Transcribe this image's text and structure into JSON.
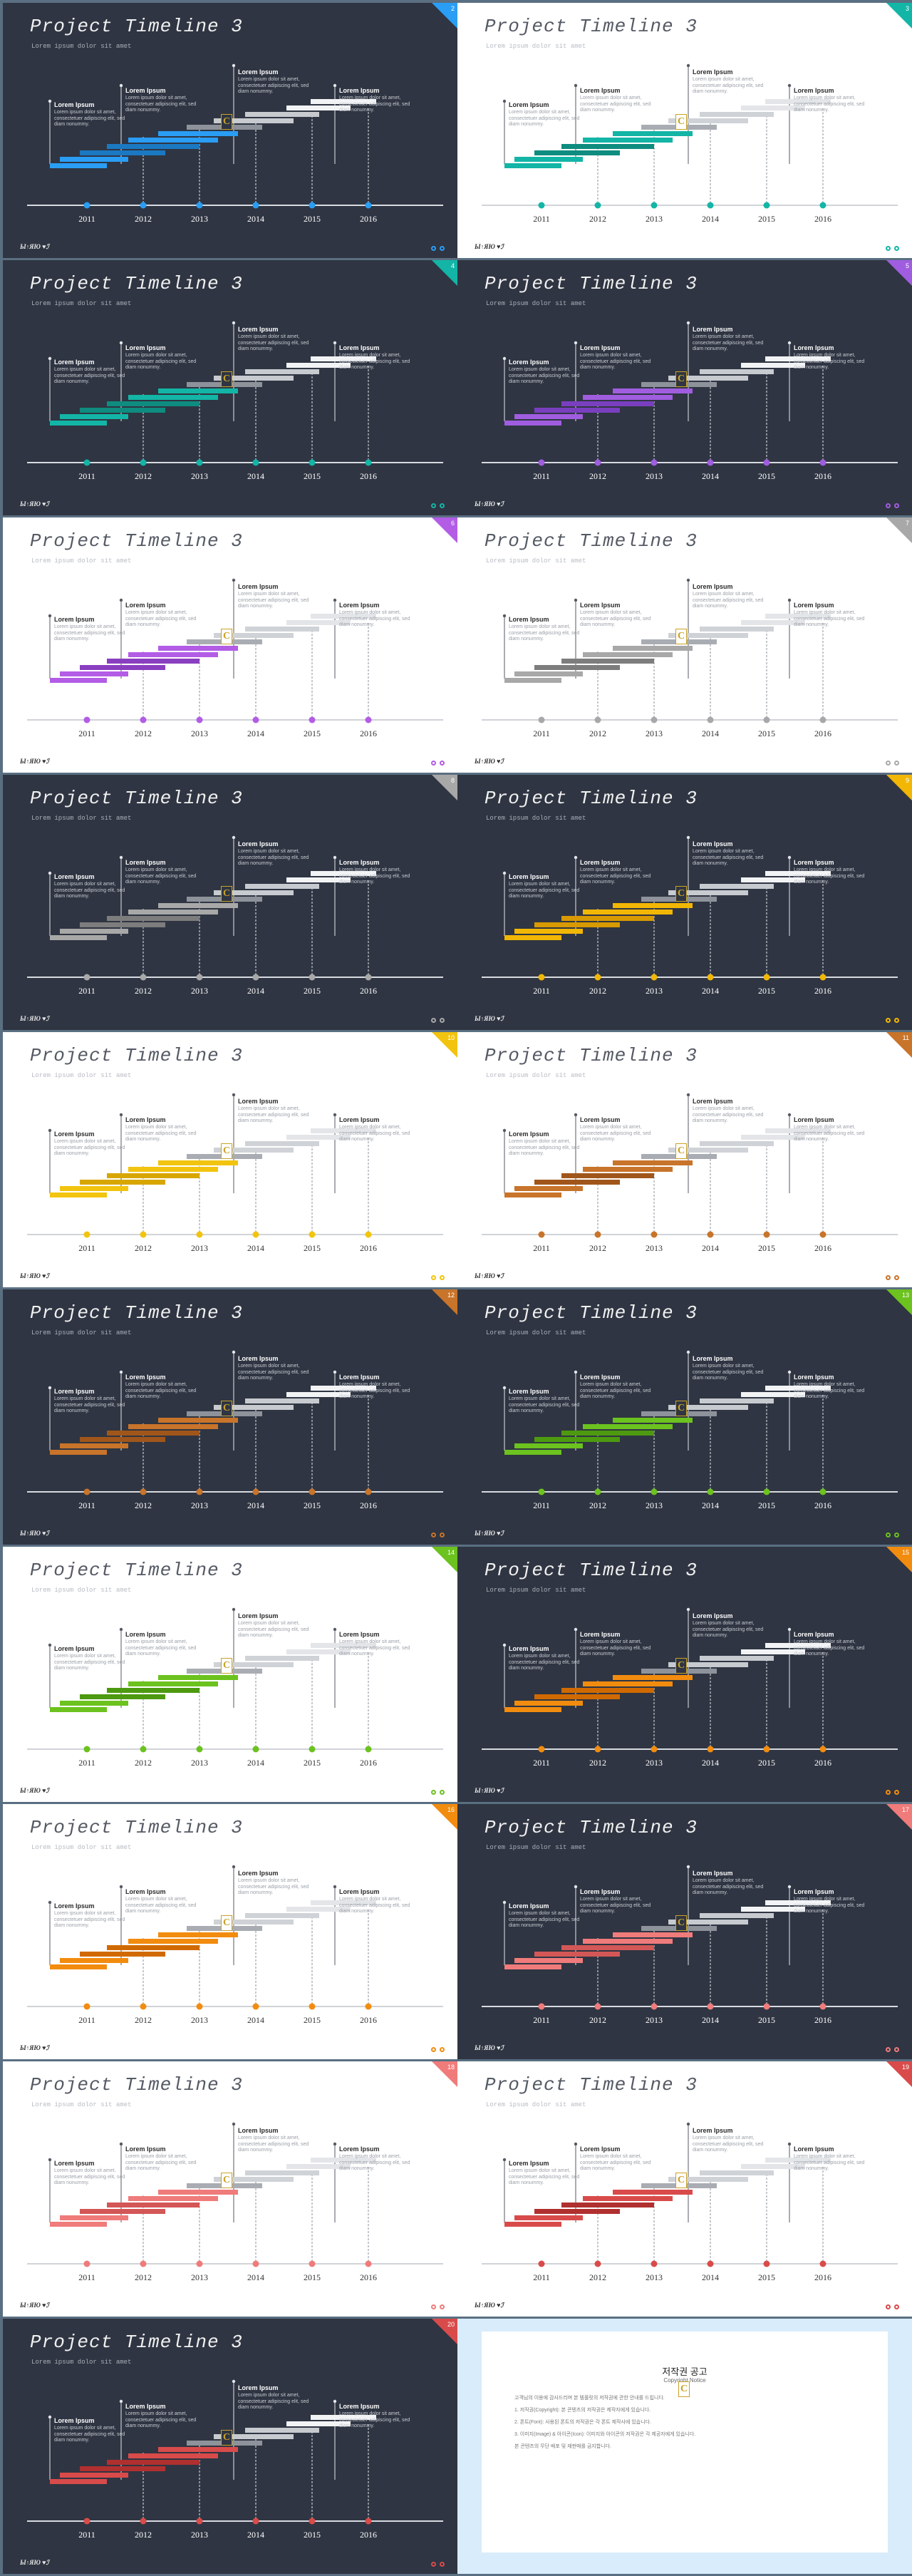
{
  "deck": {
    "title": "Project Timeline 3",
    "subtitle": "Lorem ipsum dolor sit amet",
    "footer_logo": "Ы↑ЯЮ ♥ℐ",
    "years": [
      "2011",
      "2012",
      "2013",
      "2014",
      "2015",
      "2016"
    ],
    "badge_letter": "C",
    "callouts": [
      {
        "heading": "Lorem Ipsum",
        "text": "Lorem ipsum dolor sit amet, consectetuer adipiscing elit, sed diam nonummy."
      },
      {
        "heading": "Lorem Ipsum",
        "text": "Lorem ipsum dolor sit amet, consectetuer adipiscing elit, sed diam nonummy."
      },
      {
        "heading": "Lorem Ipsum",
        "text": "Lorem ipsum dolor sit amet, consectetuer adipiscing elit, sed diam nonummy."
      },
      {
        "heading": "Lorem Ipsum",
        "text": "Lorem ipsum dolor sit amet, consectetuer adipiscing elit, sed diam nonummy."
      }
    ]
  },
  "slides": [
    {
      "num": "2",
      "theme": "dark",
      "accent": "#2a9df4",
      "accent2": "#1b78c2"
    },
    {
      "num": "3",
      "theme": "light",
      "accent": "#13b5a6",
      "accent2": "#0e8c80"
    },
    {
      "num": "4",
      "theme": "dark",
      "accent": "#13b5a6",
      "accent2": "#0e8c80"
    },
    {
      "num": "5",
      "theme": "dark",
      "accent": "#a05de0",
      "accent2": "#7a3fbf"
    },
    {
      "num": "6",
      "theme": "light",
      "accent": "#b35ce6",
      "accent2": "#8a3fc0"
    },
    {
      "num": "7",
      "theme": "light",
      "accent": "#a8a8a8",
      "accent2": "#7d7d7d"
    },
    {
      "num": "8",
      "theme": "dark",
      "accent": "#a8a8a8",
      "accent2": "#7d7d7d"
    },
    {
      "num": "9",
      "theme": "dark",
      "accent": "#f2b705",
      "accent2": "#d89a00"
    },
    {
      "num": "10",
      "theme": "light",
      "accent": "#f2c40f",
      "accent2": "#d8a600"
    },
    {
      "num": "11",
      "theme": "light",
      "accent": "#c8742a",
      "accent2": "#a0561a"
    },
    {
      "num": "12",
      "theme": "dark",
      "accent": "#c8742a",
      "accent2": "#a0561a"
    },
    {
      "num": "13",
      "theme": "dark",
      "accent": "#6cc21e",
      "accent2": "#4d9a10"
    },
    {
      "num": "14",
      "theme": "light",
      "accent": "#6cc21e",
      "accent2": "#4d9a10"
    },
    {
      "num": "15",
      "theme": "dark",
      "accent": "#f28c0f",
      "accent2": "#d06a00"
    },
    {
      "num": "16",
      "theme": "light",
      "accent": "#f28c0f",
      "accent2": "#d06a00"
    },
    {
      "num": "17",
      "theme": "dark",
      "accent": "#f07b7b",
      "accent2": "#d45757"
    },
    {
      "num": "18",
      "theme": "light",
      "accent": "#f07b7b",
      "accent2": "#d45757"
    },
    {
      "num": "19",
      "theme": "light",
      "accent": "#d94b4b",
      "accent2": "#b03030"
    },
    {
      "num": "20",
      "theme": "dark",
      "accent": "#d94b4b",
      "accent2": "#b03030"
    }
  ],
  "notice": {
    "title": "저작권 공고",
    "subtitle": "Copyright Notice",
    "paragraphs": [
      "고객님의 이용에 감사드리며 본 템플릿의 저작권에 관한 안내를 드립니다.",
      "1. 저작권(Copyright): 본 콘텐츠의 저작권은 제작자에게 있습니다.",
      "2. 폰트(Font): 사용된 폰트의 저작권은 각 폰트 제작사에 있습니다.",
      "3. 이미지(Image) & 아이콘(Icon): 이미지와 아이콘의 저작권은 각 제공자에게 있습니다.",
      "본 콘텐츠의 무단 배포 및 재판매를 금지합니다."
    ]
  }
}
